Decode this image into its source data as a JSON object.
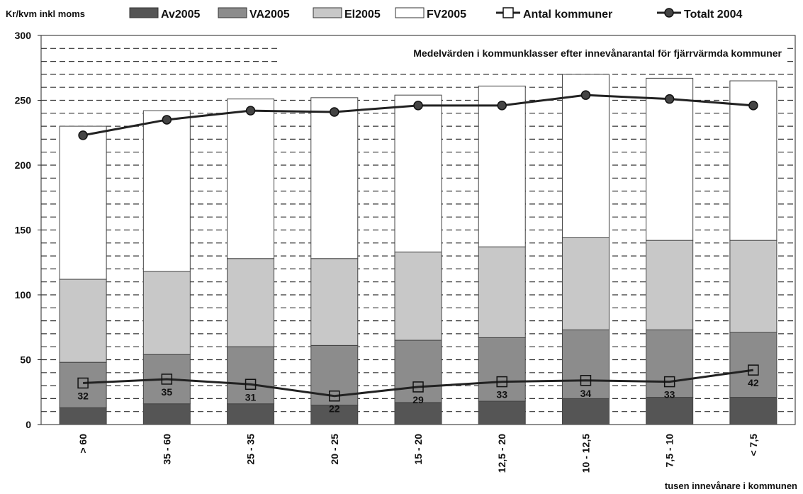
{
  "chart_data": {
    "type": "bar",
    "stacked": true,
    "ylabel": "Kr/kvm inkl moms",
    "xlabel": "tusen innevånare i kommunen",
    "annotation": "Medelvärden i kommunklasser efter innevånarantal för fjärrvärmda kommuner",
    "ylim": [
      0,
      300
    ],
    "yticks": [
      0,
      50,
      100,
      150,
      200,
      250,
      300
    ],
    "grid": "dashed-horizontal",
    "legend_position": "top",
    "categories": [
      "> 60",
      "35 - 60",
      "25 - 35",
      "20 - 25",
      "15 - 20",
      "12,5 - 20",
      "10 - 12,5",
      "7,5 - 10",
      "< 7,5"
    ],
    "series": [
      {
        "name": "Av2005",
        "kind": "bar",
        "color": "#555555",
        "values": [
          13,
          16,
          16,
          15,
          17,
          18,
          20,
          21,
          21
        ]
      },
      {
        "name": "VA2005",
        "kind": "bar",
        "color": "#8c8c8c",
        "values": [
          35,
          38,
          44,
          46,
          48,
          49,
          53,
          52,
          50
        ]
      },
      {
        "name": "El2005",
        "kind": "bar",
        "color": "#c8c8c8",
        "values": [
          64,
          64,
          68,
          67,
          68,
          70,
          71,
          69,
          71
        ]
      },
      {
        "name": "FV2005",
        "kind": "bar",
        "color": "#ffffff",
        "values": [
          118,
          124,
          123,
          124,
          121,
          124,
          126,
          125,
          123
        ]
      },
      {
        "name": "Antal kommuner",
        "kind": "line",
        "marker": "square",
        "color": "#222222",
        "values": [
          32,
          35,
          31,
          22,
          29,
          33,
          34,
          33,
          42
        ]
      },
      {
        "name": "Totalt 2004",
        "kind": "line",
        "marker": "circle",
        "color": "#222222",
        "values": [
          223,
          235,
          242,
          241,
          246,
          246,
          254,
          251,
          246
        ]
      }
    ]
  }
}
